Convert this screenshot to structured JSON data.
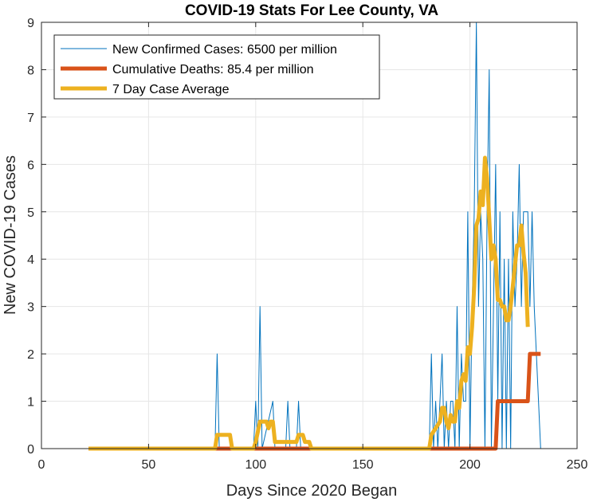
{
  "chart_data": {
    "type": "line",
    "title": "COVID-19 Stats For Lee County, VA",
    "xlabel": "Days Since 2020 Began",
    "ylabel": "New COVID-19 Cases",
    "xlim": [
      0,
      250
    ],
    "ylim": [
      0,
      9
    ],
    "xticks": [
      0,
      50,
      100,
      150,
      200,
      250
    ],
    "yticks": [
      0,
      1,
      2,
      3,
      4,
      5,
      6,
      7,
      8,
      9
    ],
    "grid": true,
    "legend_position": "top-left",
    "series": [
      {
        "name": "New Confirmed Cases: 6500 per million",
        "color": "#0072BD",
        "style": "thin",
        "points": [
          [
            22,
            0
          ],
          [
            81,
            0
          ],
          [
            82,
            2
          ],
          [
            83,
            0
          ],
          [
            99,
            0
          ],
          [
            100,
            1
          ],
          [
            101,
            0
          ],
          [
            102,
            3
          ],
          [
            103,
            0
          ],
          [
            108,
            1
          ],
          [
            109,
            0
          ],
          [
            114,
            0
          ],
          [
            115,
            1
          ],
          [
            116,
            0
          ],
          [
            119,
            0
          ],
          [
            120,
            1
          ],
          [
            121,
            0
          ],
          [
            181,
            0
          ],
          [
            182,
            2
          ],
          [
            183,
            0
          ],
          [
            184,
            1
          ],
          [
            185,
            0
          ],
          [
            186,
            1
          ],
          [
            187,
            2
          ],
          [
            188,
            0
          ],
          [
            189,
            1
          ],
          [
            190,
            0
          ],
          [
            191,
            1
          ],
          [
            192,
            1
          ],
          [
            193,
            0
          ],
          [
            194,
            3
          ],
          [
            195,
            0
          ],
          [
            196,
            2
          ],
          [
            197,
            1
          ],
          [
            198,
            1
          ],
          [
            199,
            5
          ],
          [
            200,
            0
          ],
          [
            201,
            3
          ],
          [
            202,
            5
          ],
          [
            203,
            9
          ],
          [
            204,
            3
          ],
          [
            205,
            5
          ],
          [
            206,
            4
          ],
          [
            207,
            0
          ],
          [
            208,
            5
          ],
          [
            209,
            8
          ],
          [
            210,
            0
          ],
          [
            211,
            3
          ],
          [
            212,
            6
          ],
          [
            213,
            1
          ],
          [
            214,
            5
          ],
          [
            215,
            0
          ],
          [
            216,
            4
          ],
          [
            217,
            0
          ],
          [
            218,
            4
          ],
          [
            219,
            0
          ],
          [
            220,
            5
          ],
          [
            221,
            3
          ],
          [
            222,
            4
          ],
          [
            223,
            6
          ],
          [
            224,
            3
          ],
          [
            225,
            5
          ],
          [
            226,
            5
          ],
          [
            227,
            5
          ],
          [
            228,
            3
          ],
          [
            229,
            5
          ],
          [
            230,
            3
          ],
          [
            231,
            2
          ],
          [
            232,
            1
          ],
          [
            233,
            0
          ]
        ]
      },
      {
        "name": "Cumulative Deaths: 85.4 per million",
        "color": "#D95319",
        "style": "thick",
        "points": [
          [
            22,
            0
          ],
          [
            212,
            0
          ],
          [
            213,
            1
          ],
          [
            227,
            1
          ],
          [
            228,
            2
          ],
          [
            233,
            2
          ]
        ]
      },
      {
        "name": "7 Day Case Average",
        "color": "#EDB120",
        "style": "thick",
        "points": [
          [
            22,
            0
          ],
          [
            81,
            0
          ],
          [
            82,
            0.29
          ],
          [
            88,
            0.29
          ],
          [
            89,
            0
          ],
          [
            99,
            0
          ],
          [
            100,
            0.14
          ],
          [
            102,
            0.57
          ],
          [
            105,
            0.57
          ],
          [
            106,
            0.43
          ],
          [
            107,
            0.57
          ],
          [
            108,
            0.57
          ],
          [
            109,
            0.14
          ],
          [
            115,
            0.14
          ],
          [
            116,
            0.14
          ],
          [
            119,
            0.14
          ],
          [
            120,
            0.29
          ],
          [
            122,
            0.29
          ],
          [
            123,
            0.14
          ],
          [
            125,
            0.14
          ],
          [
            126,
            0
          ],
          [
            181,
            0
          ],
          [
            182,
            0.29
          ],
          [
            184,
            0.43
          ],
          [
            186,
            0.57
          ],
          [
            187,
            0.86
          ],
          [
            188,
            0.86
          ],
          [
            189,
            0.57
          ],
          [
            190,
            0.43
          ],
          [
            191,
            0.71
          ],
          [
            192,
            0.57
          ],
          [
            193,
            0.57
          ],
          [
            194,
            1.0
          ],
          [
            195,
            0.86
          ],
          [
            196,
            1.43
          ],
          [
            197,
            1.57
          ],
          [
            198,
            1.43
          ],
          [
            199,
            2.14
          ],
          [
            200,
            2.0
          ],
          [
            201,
            2.57
          ],
          [
            202,
            3.43
          ],
          [
            203,
            4.71
          ],
          [
            204,
            4.86
          ],
          [
            205,
            5.43
          ],
          [
            206,
            5.14
          ],
          [
            207,
            6.14
          ],
          [
            208,
            5.71
          ],
          [
            209,
            4.86
          ],
          [
            210,
            4.0
          ],
          [
            211,
            4.29
          ],
          [
            212,
            4.0
          ],
          [
            213,
            3.14
          ],
          [
            214,
            3.14
          ],
          [
            215,
            3.0
          ],
          [
            216,
            3.0
          ],
          [
            217,
            2.71
          ],
          [
            218,
            2.71
          ],
          [
            219,
            3.0
          ],
          [
            220,
            3.43
          ],
          [
            221,
            3.86
          ],
          [
            222,
            4.29
          ],
          [
            223,
            4.29
          ],
          [
            224,
            4.71
          ],
          [
            225,
            4.14
          ],
          [
            226,
            3.71
          ],
          [
            227,
            2.57
          ]
        ]
      }
    ]
  }
}
